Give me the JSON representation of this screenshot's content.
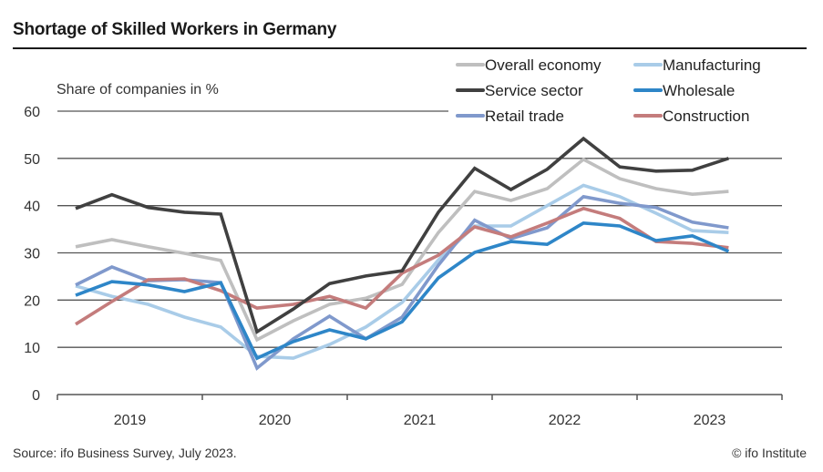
{
  "header": {
    "title": "Shortage of Skilled Workers in Germany"
  },
  "footer": {
    "source": "Source: ifo Business Survey, July 2023.",
    "copyright": "© ifo Institute"
  },
  "chart_data": {
    "type": "line",
    "title": "Shortage of Skilled Workers in Germany",
    "xlabel": "",
    "ylabel": "Share of companies in %",
    "ylim": [
      0,
      60
    ],
    "yticks": [
      0,
      10,
      20,
      30,
      40,
      50,
      60
    ],
    "grid": true,
    "legend_position": "top-right",
    "year_labels": [
      "2019",
      "2020",
      "2021",
      "2022",
      "2023"
    ],
    "x": [
      "2019-P1",
      "2019-P2",
      "2019-P3",
      "2019-P4",
      "2020-P1",
      "2020-P2",
      "2020-P3",
      "2020-P4",
      "2021-P1",
      "2021-P2",
      "2021-P3",
      "2021-P4",
      "2022-P1",
      "2022-P2",
      "2022-P3",
      "2022-P4",
      "2023-P1",
      "2023-P2",
      "2023-P3"
    ],
    "series": [
      {
        "name": "Overall economy",
        "color": "#bfbfbf",
        "values": [
          31.3,
          32.8,
          31.3,
          29.9,
          28.4,
          11.6,
          15.6,
          19.1,
          20.4,
          23.3,
          34.3,
          43.0,
          41.1,
          43.6,
          49.8,
          45.7,
          43.6,
          42.4,
          43.0
        ]
      },
      {
        "name": "Manufacturing",
        "color": "#a9cce8",
        "values": [
          23.0,
          20.8,
          19.1,
          16.4,
          14.3,
          8.1,
          7.7,
          10.6,
          14.3,
          19.5,
          28.5,
          35.7,
          35.7,
          40.0,
          44.3,
          41.9,
          38.4,
          34.7,
          34.3
        ]
      },
      {
        "name": "Service sector",
        "color": "#404040",
        "values": [
          39.4,
          42.3,
          39.6,
          38.6,
          38.2,
          13.3,
          18.1,
          23.5,
          25.1,
          26.2,
          38.6,
          47.9,
          43.4,
          47.7,
          54.2,
          48.2,
          47.3,
          47.5,
          50.0
        ]
      },
      {
        "name": "Wholesale",
        "color": "#2e86c8",
        "values": [
          21.0,
          23.9,
          23.2,
          21.8,
          23.7,
          7.7,
          11.2,
          13.7,
          11.8,
          15.4,
          24.7,
          30.1,
          32.4,
          31.8,
          36.3,
          35.7,
          32.6,
          33.6,
          30.3
        ]
      },
      {
        "name": "Retail trade",
        "color": "#8099cc",
        "values": [
          23.2,
          27.0,
          24.1,
          24.3,
          23.7,
          5.6,
          11.8,
          16.6,
          11.8,
          16.4,
          27.4,
          36.9,
          33.0,
          35.3,
          41.9,
          40.5,
          39.6,
          36.5,
          35.3
        ]
      },
      {
        "name": "Construction",
        "color": "#c47c7c",
        "values": [
          14.9,
          19.7,
          24.3,
          24.5,
          22.0,
          18.3,
          19.1,
          20.8,
          18.3,
          25.7,
          29.5,
          35.5,
          33.4,
          36.3,
          39.4,
          37.3,
          32.4,
          32.0,
          31.1
        ]
      }
    ]
  }
}
